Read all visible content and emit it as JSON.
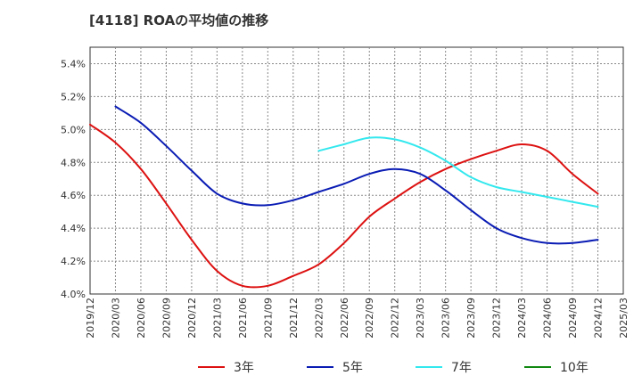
{
  "chart_data": {
    "type": "line",
    "title": "[4118]  ROAの平均値の推移",
    "xlabel": "",
    "ylabel": "",
    "ylim": [
      4.0,
      5.5
    ],
    "yticks": [
      "4.0%",
      "4.2%",
      "4.4%",
      "4.6%",
      "4.8%",
      "5.0%",
      "5.2%",
      "5.4%"
    ],
    "ytick_values": [
      4.0,
      4.2,
      4.4,
      4.6,
      4.8,
      5.0,
      5.2,
      5.4
    ],
    "x": [
      "2019/12",
      "2020/03",
      "2020/06",
      "2020/09",
      "2020/12",
      "2021/03",
      "2021/06",
      "2021/09",
      "2021/12",
      "2022/03",
      "2022/06",
      "2022/09",
      "2022/12",
      "2023/03",
      "2023/06",
      "2023/09",
      "2023/12",
      "2024/03",
      "2024/06",
      "2024/09",
      "2024/12",
      "2025/03"
    ],
    "grid": true,
    "legend_position": "bottom",
    "series": [
      {
        "name": "3年",
        "color": "#dd1111",
        "values": [
          5.03,
          4.92,
          4.76,
          4.55,
          4.33,
          4.14,
          4.05,
          4.05,
          4.11,
          4.18,
          4.31,
          4.47,
          4.58,
          4.68,
          4.76,
          4.82,
          4.87,
          4.91,
          4.87,
          4.73,
          4.61,
          null
        ]
      },
      {
        "name": "5年",
        "color": "#0a1cb4",
        "values": [
          null,
          5.14,
          5.04,
          4.9,
          4.75,
          4.61,
          4.55,
          4.54,
          4.57,
          4.62,
          4.67,
          4.73,
          4.76,
          4.73,
          4.63,
          4.51,
          4.4,
          4.34,
          4.31,
          4.31,
          4.33,
          null
        ]
      },
      {
        "name": "7年",
        "color": "#33e8ee",
        "values": [
          null,
          null,
          null,
          null,
          null,
          null,
          null,
          null,
          null,
          4.87,
          4.91,
          4.95,
          4.94,
          4.89,
          4.81,
          4.71,
          4.65,
          4.62,
          4.59,
          4.56,
          4.53,
          null
        ]
      },
      {
        "name": "10年",
        "color": "#118811",
        "values": [
          null,
          null,
          null,
          null,
          null,
          null,
          null,
          null,
          null,
          null,
          null,
          null,
          null,
          null,
          null,
          null,
          null,
          null,
          null,
          null,
          null,
          null
        ]
      }
    ]
  }
}
